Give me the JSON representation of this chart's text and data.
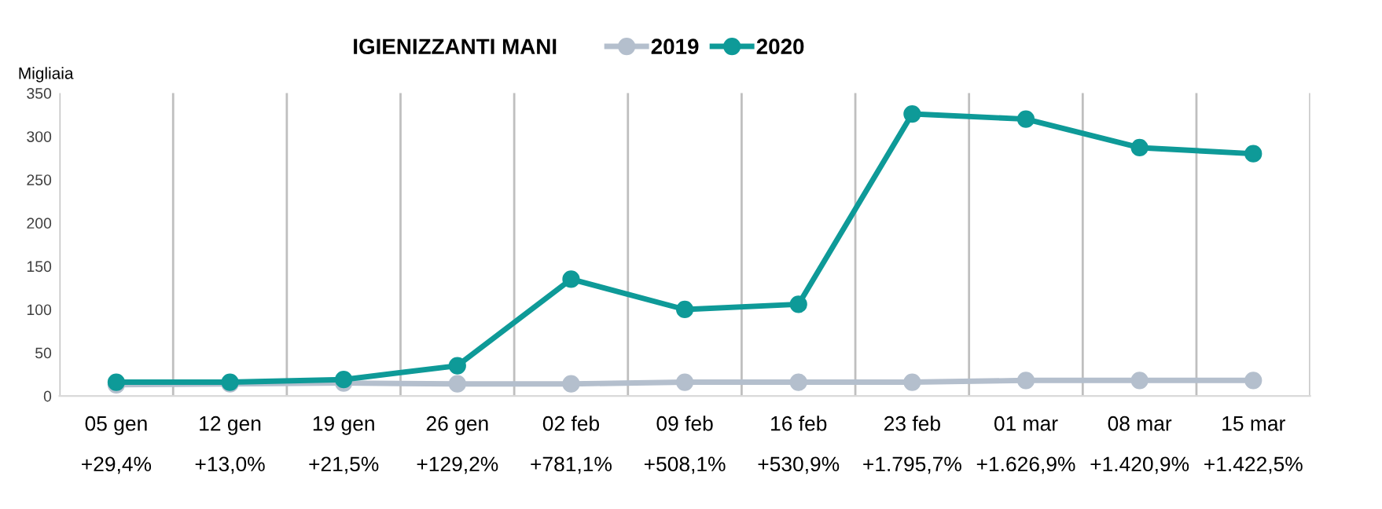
{
  "chart_data": {
    "type": "line",
    "title": "IGIENIZZANTI MANI",
    "ylabel": "Migliaia",
    "categories": [
      "05 gen",
      "12 gen",
      "19 gen",
      "26 gen",
      "02 feb",
      "09 feb",
      "16 feb",
      "23 feb",
      "01 mar",
      "08 mar",
      "15 mar"
    ],
    "series": [
      {
        "name": "2019",
        "color": "#b4bfcd",
        "values": [
          13,
          14,
          15,
          14,
          14,
          16,
          16,
          16,
          18,
          18,
          18
        ]
      },
      {
        "name": "2020",
        "color": "#0e9a98",
        "values": [
          16,
          16,
          19,
          35,
          135,
          100,
          106,
          326,
          320,
          287,
          280
        ]
      }
    ],
    "annotations": [
      "+29,4%",
      "+13,0%",
      "+21,5%",
      "+129,2%",
      "+781,1%",
      "+508,1%",
      "+530,9%",
      "+1.795,7%",
      "+1.626,9%",
      "+1.420,9%",
      "+1.422,5%"
    ],
    "ylim": [
      0,
      350
    ],
    "yticks": [
      0,
      50,
      100,
      150,
      200,
      250,
      300,
      350
    ],
    "grid": "x",
    "legend": "top",
    "marker": "circle",
    "line_style": "solid"
  }
}
